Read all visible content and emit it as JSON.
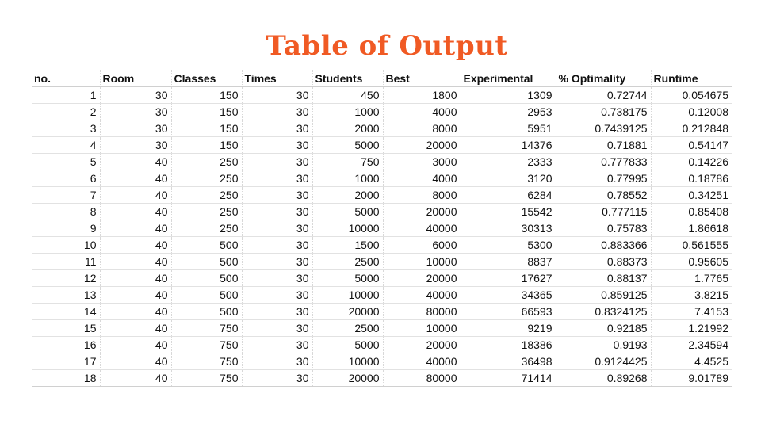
{
  "title": "Table of Output",
  "table": {
    "headers": [
      "no.",
      "Room",
      "Classes",
      "Times",
      "Students",
      "Best",
      "Experimental",
      "% Optimality",
      "Runtime"
    ],
    "rows": [
      [
        "1",
        "30",
        "150",
        "30",
        "450",
        "1800",
        "1309",
        "0.72744",
        "0.054675"
      ],
      [
        "2",
        "30",
        "150",
        "30",
        "1000",
        "4000",
        "2953",
        "0.738175",
        "0.12008"
      ],
      [
        "3",
        "30",
        "150",
        "30",
        "2000",
        "8000",
        "5951",
        "0.7439125",
        "0.212848"
      ],
      [
        "4",
        "30",
        "150",
        "30",
        "5000",
        "20000",
        "14376",
        "0.71881",
        "0.54147"
      ],
      [
        "5",
        "40",
        "250",
        "30",
        "750",
        "3000",
        "2333",
        "0.777833",
        "0.14226"
      ],
      [
        "6",
        "40",
        "250",
        "30",
        "1000",
        "4000",
        "3120",
        "0.77995",
        "0.18786"
      ],
      [
        "7",
        "40",
        "250",
        "30",
        "2000",
        "8000",
        "6284",
        "0.78552",
        "0.34251"
      ],
      [
        "8",
        "40",
        "250",
        "30",
        "5000",
        "20000",
        "15542",
        "0.777115",
        "0.85408"
      ],
      [
        "9",
        "40",
        "250",
        "30",
        "10000",
        "40000",
        "30313",
        "0.75783",
        "1.86618"
      ],
      [
        "10",
        "40",
        "500",
        "30",
        "1500",
        "6000",
        "5300",
        "0.883366",
        "0.561555"
      ],
      [
        "11",
        "40",
        "500",
        "30",
        "2500",
        "10000",
        "8837",
        "0.88373",
        "0.95605"
      ],
      [
        "12",
        "40",
        "500",
        "30",
        "5000",
        "20000",
        "17627",
        "0.88137",
        "1.7765"
      ],
      [
        "13",
        "40",
        "500",
        "30",
        "10000",
        "40000",
        "34365",
        "0.859125",
        "3.8215"
      ],
      [
        "14",
        "40",
        "500",
        "30",
        "20000",
        "80000",
        "66593",
        "0.8324125",
        "7.4153"
      ],
      [
        "15",
        "40",
        "750",
        "30",
        "2500",
        "10000",
        "9219",
        "0.92185",
        "1.21992"
      ],
      [
        "16",
        "40",
        "750",
        "30",
        "5000",
        "20000",
        "18386",
        "0.9193",
        "2.34594"
      ],
      [
        "17",
        "40",
        "750",
        "30",
        "10000",
        "40000",
        "36498",
        "0.9124425",
        "4.4525"
      ],
      [
        "18",
        "40",
        "750",
        "30",
        "20000",
        "80000",
        "71414",
        "0.89268",
        "9.01789"
      ]
    ]
  },
  "colors": {
    "title": "#f05a24",
    "text": "#111111",
    "grid_line": "#e2e2e2"
  }
}
